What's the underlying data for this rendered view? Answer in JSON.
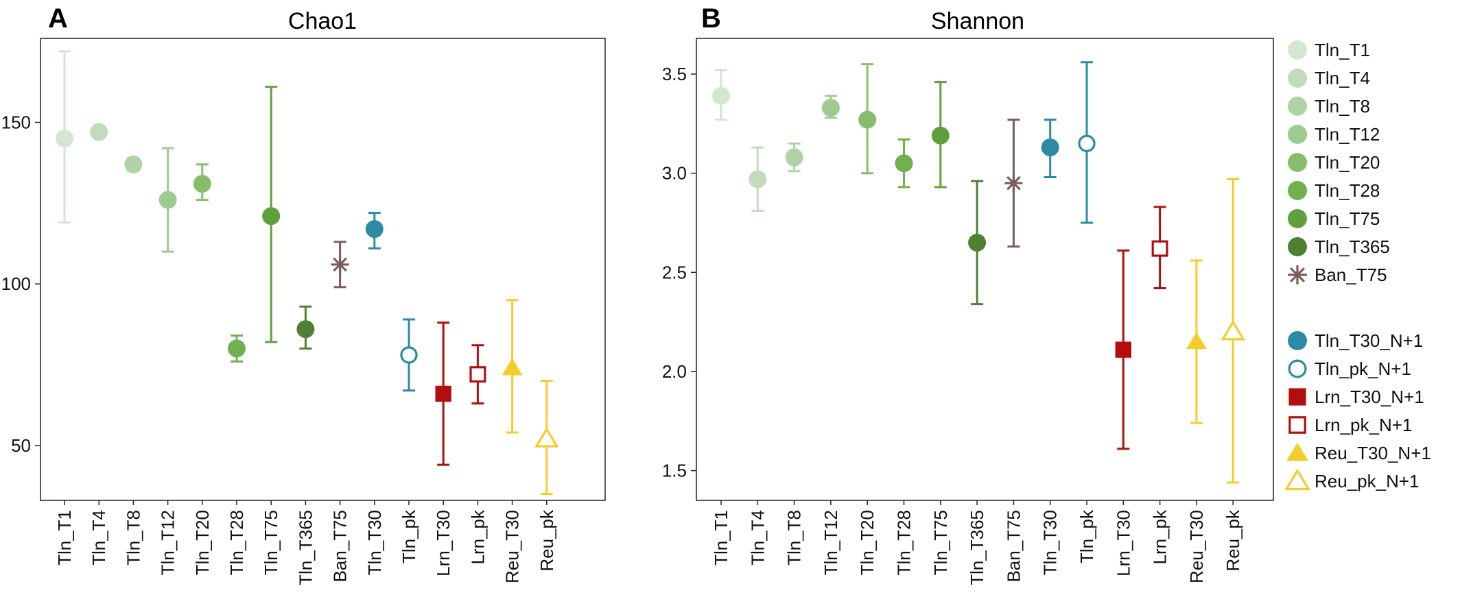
{
  "chart_data": [
    {
      "panel": "A",
      "type": "scatter",
      "title": "Chao1",
      "xlabel": "",
      "ylabel": "",
      "ylim": [
        33,
        176
      ],
      "yticks": [
        50,
        100,
        150
      ],
      "categories": [
        "Tln_T1",
        "Tln_T4",
        "Tln_T8",
        "Tln_T12",
        "Tln_T20",
        "Tln_T28",
        "Tln_T75",
        "Tln_T365",
        "Ban_T75",
        "Tln_T30",
        "Tln_pk",
        "Lrn_T30",
        "Lrn_pk",
        "Reu_T30",
        "Reu_pk"
      ],
      "points": [
        {
          "category": "Tln_T1",
          "value": 145,
          "low": 119,
          "high": 172,
          "group": "Tln_T1"
        },
        {
          "category": "Tln_T4",
          "value": 147,
          "low": 147,
          "high": 147,
          "group": "Tln_T4"
        },
        {
          "category": "Tln_T8",
          "value": 137,
          "low": 135,
          "high": 139,
          "group": "Tln_T8"
        },
        {
          "category": "Tln_T12",
          "value": 126,
          "low": 110,
          "high": 142,
          "group": "Tln_T12"
        },
        {
          "category": "Tln_T20",
          "value": 131,
          "low": 126,
          "high": 137,
          "group": "Tln_T20"
        },
        {
          "category": "Tln_T28",
          "value": 80,
          "low": 76,
          "high": 84,
          "group": "Tln_T28"
        },
        {
          "category": "Tln_T75",
          "value": 121,
          "low": 82,
          "high": 161,
          "group": "Tln_T75"
        },
        {
          "category": "Tln_T365",
          "value": 86,
          "low": 80,
          "high": 93,
          "group": "Tln_T365"
        },
        {
          "category": "Ban_T75",
          "value": 106,
          "low": 99,
          "high": 113,
          "group": "Ban_T75"
        },
        {
          "category": "Tln_T30",
          "value": 117,
          "low": 111,
          "high": 122,
          "group": "Tln_T30_N+1"
        },
        {
          "category": "Tln_pk",
          "value": 78,
          "low": 67,
          "high": 89,
          "group": "Tln_pk_N+1"
        },
        {
          "category": "Lrn_T30",
          "value": 66,
          "low": 44,
          "high": 88,
          "group": "Lrn_T30_N+1"
        },
        {
          "category": "Lrn_pk",
          "value": 72,
          "low": 63,
          "high": 81,
          "group": "Lrn_pk_N+1"
        },
        {
          "category": "Reu_T30",
          "value": 74,
          "low": 54,
          "high": 95,
          "group": "Reu_T30_N+1"
        },
        {
          "category": "Reu_pk",
          "value": 52,
          "low": 35,
          "high": 70,
          "group": "Reu_pk_N+1"
        }
      ]
    },
    {
      "panel": "B",
      "type": "scatter",
      "title": "Shannon",
      "xlabel": "",
      "ylabel": "",
      "ylim": [
        1.35,
        3.68
      ],
      "yticks": [
        "1.5",
        "2.0",
        "2.5",
        "3.0",
        "3.5"
      ],
      "categories": [
        "Tln_T1",
        "Tln_T4",
        "Tln_T8",
        "Tln_T12",
        "Tln_T20",
        "Tln_T28",
        "Tln_T75",
        "Tln_T365",
        "Ban_T75",
        "Tln_T30",
        "Tln_pk",
        "Lrn_T30",
        "Lrn_pk",
        "Reu_T30",
        "Reu_pk"
      ],
      "points": [
        {
          "category": "Tln_T1",
          "value": 3.39,
          "low": 3.27,
          "high": 3.52,
          "group": "Tln_T1"
        },
        {
          "category": "Tln_T4",
          "value": 2.97,
          "low": 2.81,
          "high": 3.13,
          "group": "Tln_T4"
        },
        {
          "category": "Tln_T8",
          "value": 3.08,
          "low": 3.01,
          "high": 3.15,
          "group": "Tln_T8"
        },
        {
          "category": "Tln_T12",
          "value": 3.33,
          "low": 3.28,
          "high": 3.39,
          "group": "Tln_T12"
        },
        {
          "category": "Tln_T20",
          "value": 3.27,
          "low": 3.0,
          "high": 3.55,
          "group": "Tln_T20"
        },
        {
          "category": "Tln_T28",
          "value": 3.05,
          "low": 2.93,
          "high": 3.17,
          "group": "Tln_T28"
        },
        {
          "category": "Tln_T75",
          "value": 3.19,
          "low": 2.93,
          "high": 3.46,
          "group": "Tln_T75"
        },
        {
          "category": "Tln_T365",
          "value": 2.65,
          "low": 2.34,
          "high": 2.96,
          "group": "Tln_T365"
        },
        {
          "category": "Ban_T75",
          "value": 2.95,
          "low": 2.63,
          "high": 3.27,
          "group": "Ban_T75"
        },
        {
          "category": "Tln_T30",
          "value": 3.13,
          "low": 2.98,
          "high": 3.27,
          "group": "Tln_T30_N+1"
        },
        {
          "category": "Tln_pk",
          "value": 3.15,
          "low": 2.75,
          "high": 3.56,
          "group": "Tln_pk_N+1"
        },
        {
          "category": "Lrn_T30",
          "value": 2.11,
          "low": 1.61,
          "high": 2.61,
          "group": "Lrn_T30_N+1"
        },
        {
          "category": "Lrn_pk",
          "value": 2.62,
          "low": 2.42,
          "high": 2.83,
          "group": "Lrn_pk_N+1"
        },
        {
          "category": "Reu_T30",
          "value": 2.15,
          "low": 1.74,
          "high": 2.56,
          "group": "Reu_T30_N+1"
        },
        {
          "category": "Reu_pk",
          "value": 2.2,
          "low": 1.44,
          "high": 2.97,
          "group": "Reu_pk_N+1"
        }
      ]
    }
  ],
  "legend": [
    {
      "label": "Tln_T1",
      "marker": "circle-filled",
      "color": "#d3e6d0"
    },
    {
      "label": "Tln_T4",
      "marker": "circle-filled",
      "color": "#c2dbbc"
    },
    {
      "label": "Tln_T8",
      "marker": "circle-filled",
      "color": "#b0d3a5"
    },
    {
      "label": "Tln_T12",
      "marker": "circle-filled",
      "color": "#9ecb8f"
    },
    {
      "label": "Tln_T20",
      "marker": "circle-filled",
      "color": "#86be6e"
    },
    {
      "label": "Tln_T28",
      "marker": "circle-filled",
      "color": "#70b04f"
    },
    {
      "label": "Tln_T75",
      "marker": "circle-filled",
      "color": "#5f9f3e"
    },
    {
      "label": "Tln_T365",
      "marker": "circle-filled",
      "color": "#4e8134"
    },
    {
      "label": "Ban_T75",
      "marker": "asterisk",
      "color": "#7a5c5c"
    },
    {
      "label": "Tln_T30_N+1",
      "marker": "circle-filled",
      "color": "#2b8ba5"
    },
    {
      "label": "Tln_pk_N+1",
      "marker": "circle-open",
      "color": "#2b8ba5"
    },
    {
      "label": "Lrn_T30_N+1",
      "marker": "square-filled",
      "color": "#b30e0e"
    },
    {
      "label": "Lrn_pk_N+1",
      "marker": "square-open",
      "color": "#b30e0e"
    },
    {
      "label": "Reu_T30_N+1",
      "marker": "triangle-filled",
      "color": "#f5cc2a"
    },
    {
      "label": "Reu_pk_N+1",
      "marker": "triangle-open",
      "color": "#f5cc2a"
    }
  ]
}
